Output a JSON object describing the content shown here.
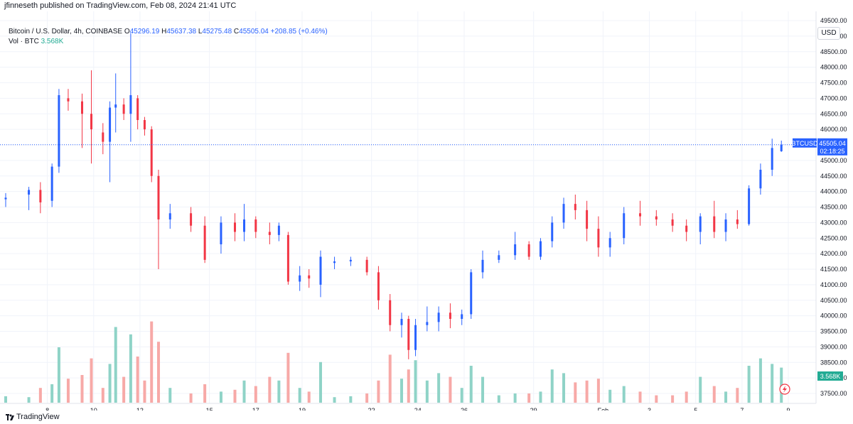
{
  "header": {
    "published": "jfinneseth published on TradingView.com, Feb 08, 2024 21:41 UTC"
  },
  "legend": {
    "title": "Bitcoin / U.S. Dollar, 4h, COINBASE",
    "o_label": "O",
    "o": "45296.19",
    "h_label": "H",
    "h": "45637.38",
    "l_label": "L",
    "l": "45275.48",
    "c_label": "C",
    "c": "45505.04",
    "change": "+208.85 (+0.46%)",
    "vol_label": "Vol · BTC",
    "vol": "3.568K"
  },
  "currency": "USD",
  "price_tag": {
    "symbol": "BTCUSD",
    "price": "45505.04",
    "countdown": "02:18:25"
  },
  "volume_tag": "3.568K",
  "footer": {
    "brand": "TradingView"
  },
  "colors": {
    "up": "#2962ff",
    "down": "#f23645",
    "vol_up": "#8fd3c7",
    "vol_down": "#f7a9a7",
    "grid": "#f0f3fa"
  },
  "chart_data": {
    "type": "candlestick",
    "symbol": "BTCUSD",
    "interval": "4h",
    "y_ticks": [
      "49500.00",
      "49000.00",
      "48500.00",
      "48000.00",
      "47500.00",
      "47000.00",
      "46500.00",
      "46000.00",
      "45500.00",
      "45000.00",
      "44500.00",
      "44000.00",
      "43500.00",
      "43000.00",
      "42500.00",
      "42000.00",
      "41500.00",
      "41000.00",
      "40500.00",
      "40000.00",
      "39500.00",
      "39000.00",
      "38500.00",
      "38000.00",
      "37500.00"
    ],
    "ylim": [
      37500,
      49500
    ],
    "x_ticks": [
      {
        "label": "8",
        "day": 8
      },
      {
        "label": "10",
        "day": 10
      },
      {
        "label": "12",
        "day": 12
      },
      {
        "label": "15",
        "day": 15
      },
      {
        "label": "17",
        "day": 17
      },
      {
        "label": "19",
        "day": 19
      },
      {
        "label": "22",
        "day": 22
      },
      {
        "label": "24",
        "day": 24
      },
      {
        "label": "26",
        "day": 26
      },
      {
        "label": "29",
        "day": 29
      },
      {
        "label": "Feb",
        "day": 32
      },
      {
        "label": "3",
        "day": 34
      },
      {
        "label": "5",
        "day": 36
      },
      {
        "label": "7",
        "day": 38
      },
      {
        "label": "9",
        "day": 40
      }
    ],
    "last_price": 45505.04,
    "days": [
      {
        "day": 6.2,
        "o": 43750,
        "h": 43950,
        "l": 43500,
        "c": 43800,
        "v": 0.35
      },
      {
        "day": 7.2,
        "o": 43900,
        "h": 44150,
        "l": 43400,
        "c": 44050,
        "v": 0.3
      },
      {
        "day": 7.7,
        "o": 44050,
        "h": 44300,
        "l": 43300,
        "c": 43650,
        "v": 0.8
      },
      {
        "day": 8.2,
        "o": 43700,
        "h": 44900,
        "l": 43500,
        "c": 44800,
        "v": 1.0
      },
      {
        "day": 8.5,
        "o": 44800,
        "h": 47300,
        "l": 44600,
        "c": 47100,
        "v": 3.0
      },
      {
        "day": 8.9,
        "o": 47000,
        "h": 47300,
        "l": 46600,
        "c": 46900,
        "v": 1.3
      },
      {
        "day": 9.5,
        "o": 46900,
        "h": 47150,
        "l": 45400,
        "c": 46500,
        "v": 1.5
      },
      {
        "day": 9.9,
        "o": 46500,
        "h": 47900,
        "l": 44900,
        "c": 46000,
        "v": 2.4
      },
      {
        "day": 10.4,
        "o": 45900,
        "h": 46200,
        "l": 45200,
        "c": 45600,
        "v": 0.8
      },
      {
        "day": 10.7,
        "o": 45600,
        "h": 46900,
        "l": 44300,
        "c": 46700,
        "v": 2.1
      },
      {
        "day": 10.95,
        "o": 46700,
        "h": 47800,
        "l": 45900,
        "c": 46800,
        "v": 4.1
      },
      {
        "day": 11.3,
        "o": 46800,
        "h": 47000,
        "l": 46300,
        "c": 46500,
        "v": 1.4
      },
      {
        "day": 11.6,
        "o": 46500,
        "h": 49100,
        "l": 45600,
        "c": 47100,
        "v": 3.7
      },
      {
        "day": 11.9,
        "o": 47000,
        "h": 47100,
        "l": 46000,
        "c": 46300,
        "v": 2.5
      },
      {
        "day": 12.2,
        "o": 46300,
        "h": 46400,
        "l": 45800,
        "c": 46000,
        "v": 1.2
      },
      {
        "day": 12.5,
        "o": 46000,
        "h": 46100,
        "l": 44300,
        "c": 44500,
        "v": 4.4
      },
      {
        "day": 12.8,
        "o": 44500,
        "h": 44700,
        "l": 41500,
        "c": 43100,
        "v": 3.3
      },
      {
        "day": 13.3,
        "o": 43100,
        "h": 43600,
        "l": 42800,
        "c": 43300,
        "v": 0.8
      },
      {
        "day": 14.2,
        "o": 43300,
        "h": 43500,
        "l": 42700,
        "c": 42900,
        "v": 0.5
      },
      {
        "day": 14.8,
        "o": 42900,
        "h": 43200,
        "l": 41700,
        "c": 41800,
        "v": 1.0
      },
      {
        "day": 15.5,
        "o": 42300,
        "h": 43200,
        "l": 42000,
        "c": 43000,
        "v": 0.6
      },
      {
        "day": 16.1,
        "o": 43000,
        "h": 43300,
        "l": 42400,
        "c": 42700,
        "v": 0.7
      },
      {
        "day": 16.5,
        "o": 42700,
        "h": 43600,
        "l": 42400,
        "c": 43100,
        "v": 1.2
      },
      {
        "day": 17.0,
        "o": 43100,
        "h": 43200,
        "l": 42500,
        "c": 42700,
        "v": 0.9
      },
      {
        "day": 17.6,
        "o": 42700,
        "h": 43000,
        "l": 42300,
        "c": 42600,
        "v": 1.4
      },
      {
        "day": 18.0,
        "o": 42600,
        "h": 43000,
        "l": 42400,
        "c": 42900,
        "v": 1.2
      },
      {
        "day": 18.4,
        "o": 42600,
        "h": 42700,
        "l": 41000,
        "c": 41100,
        "v": 2.7
      },
      {
        "day": 18.9,
        "o": 41100,
        "h": 41600,
        "l": 40800,
        "c": 41300,
        "v": 0.8
      },
      {
        "day": 19.3,
        "o": 41300,
        "h": 41500,
        "l": 40900,
        "c": 41200,
        "v": 0.6
      },
      {
        "day": 19.8,
        "o": 41000,
        "h": 42100,
        "l": 40600,
        "c": 41900,
        "v": 2.2
      },
      {
        "day": 20.4,
        "o": 41700,
        "h": 41900,
        "l": 41500,
        "c": 41750,
        "v": 0.3
      },
      {
        "day": 21.1,
        "o": 41750,
        "h": 41900,
        "l": 41600,
        "c": 41800,
        "v": 0.35
      },
      {
        "day": 21.8,
        "o": 41800,
        "h": 41900,
        "l": 41300,
        "c": 41400,
        "v": 0.5
      },
      {
        "day": 22.3,
        "o": 41400,
        "h": 41600,
        "l": 40200,
        "c": 40500,
        "v": 1.2
      },
      {
        "day": 22.8,
        "o": 40500,
        "h": 40700,
        "l": 39500,
        "c": 39700,
        "v": 2.6
      },
      {
        "day": 23.3,
        "o": 39700,
        "h": 40100,
        "l": 39300,
        "c": 39900,
        "v": 1.3
      },
      {
        "day": 23.6,
        "o": 39900,
        "h": 40000,
        "l": 38600,
        "c": 38900,
        "v": 1.8
      },
      {
        "day": 23.9,
        "o": 38900,
        "h": 39900,
        "l": 38700,
        "c": 39700,
        "v": 2.3
      },
      {
        "day": 24.4,
        "o": 39700,
        "h": 40300,
        "l": 39500,
        "c": 39800,
        "v": 1.2
      },
      {
        "day": 24.9,
        "o": 39800,
        "h": 40300,
        "l": 39500,
        "c": 40100,
        "v": 1.6
      },
      {
        "day": 25.4,
        "o": 40100,
        "h": 40400,
        "l": 39600,
        "c": 39900,
        "v": 1.4
      },
      {
        "day": 25.9,
        "o": 39900,
        "h": 40200,
        "l": 39700,
        "c": 40050,
        "v": 0.8
      },
      {
        "day": 26.3,
        "o": 40050,
        "h": 41500,
        "l": 39900,
        "c": 41400,
        "v": 2.0
      },
      {
        "day": 26.8,
        "o": 41400,
        "h": 42100,
        "l": 41200,
        "c": 41800,
        "v": 1.4
      },
      {
        "day": 27.5,
        "o": 41800,
        "h": 42100,
        "l": 41700,
        "c": 41950,
        "v": 0.4
      },
      {
        "day": 28.2,
        "o": 41950,
        "h": 42700,
        "l": 41800,
        "c": 42300,
        "v": 0.5
      },
      {
        "day": 28.8,
        "o": 42300,
        "h": 42400,
        "l": 41800,
        "c": 41900,
        "v": 0.5
      },
      {
        "day": 29.3,
        "o": 41900,
        "h": 42500,
        "l": 41800,
        "c": 42400,
        "v": 0.6
      },
      {
        "day": 29.8,
        "o": 42400,
        "h": 43200,
        "l": 42200,
        "c": 43000,
        "v": 1.8
      },
      {
        "day": 30.3,
        "o": 43000,
        "h": 43800,
        "l": 42800,
        "c": 43600,
        "v": 1.6
      },
      {
        "day": 30.8,
        "o": 43600,
        "h": 43900,
        "l": 43100,
        "c": 43400,
        "v": 1.1
      },
      {
        "day": 31.3,
        "o": 43400,
        "h": 43700,
        "l": 42400,
        "c": 42800,
        "v": 1.2
      },
      {
        "day": 31.8,
        "o": 42800,
        "h": 43200,
        "l": 41900,
        "c": 42200,
        "v": 1.3
      },
      {
        "day": 32.3,
        "o": 42200,
        "h": 42700,
        "l": 41900,
        "c": 42500,
        "v": 0.7
      },
      {
        "day": 32.9,
        "o": 42500,
        "h": 43500,
        "l": 42300,
        "c": 43300,
        "v": 0.9
      },
      {
        "day": 33.6,
        "o": 43300,
        "h": 43700,
        "l": 42900,
        "c": 43200,
        "v": 0.6
      },
      {
        "day": 34.3,
        "o": 43200,
        "h": 43400,
        "l": 42900,
        "c": 43100,
        "v": 0.4
      },
      {
        "day": 35.0,
        "o": 43100,
        "h": 43300,
        "l": 42700,
        "c": 42900,
        "v": 0.4
      },
      {
        "day": 35.6,
        "o": 42900,
        "h": 43100,
        "l": 42400,
        "c": 42700,
        "v": 0.6
      },
      {
        "day": 36.2,
        "o": 42700,
        "h": 43300,
        "l": 42300,
        "c": 43200,
        "v": 1.4
      },
      {
        "day": 36.8,
        "o": 43200,
        "h": 43700,
        "l": 42500,
        "c": 42700,
        "v": 0.9
      },
      {
        "day": 37.3,
        "o": 42700,
        "h": 43300,
        "l": 42400,
        "c": 43100,
        "v": 0.6
      },
      {
        "day": 37.8,
        "o": 43100,
        "h": 43400,
        "l": 42800,
        "c": 42950,
        "v": 0.8
      },
      {
        "day": 38.3,
        "o": 42950,
        "h": 44200,
        "l": 42900,
        "c": 44100,
        "v": 2.0
      },
      {
        "day": 38.8,
        "o": 44100,
        "h": 44900,
        "l": 43900,
        "c": 44700,
        "v": 2.4
      },
      {
        "day": 39.3,
        "o": 44700,
        "h": 45700,
        "l": 44500,
        "c": 45400,
        "v": 2.1
      },
      {
        "day": 39.7,
        "o": 45296,
        "h": 45637,
        "l": 45275,
        "c": 45505,
        "v": 1.9
      }
    ]
  }
}
